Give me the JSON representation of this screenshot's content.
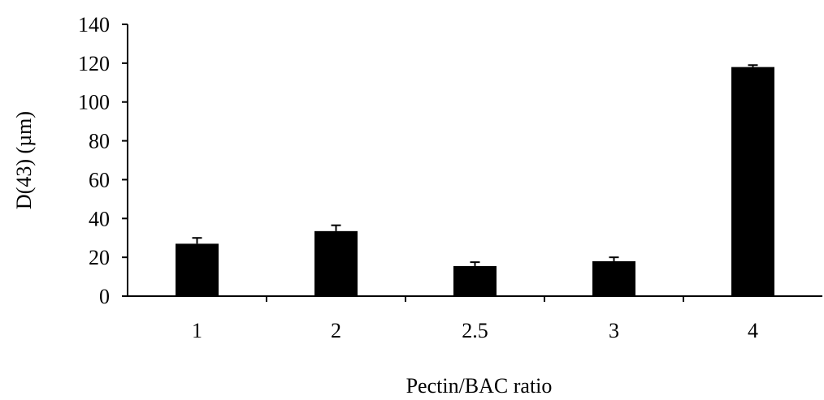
{
  "chart_data": {
    "type": "bar",
    "categories": [
      "1",
      "2",
      "2.5",
      "3",
      "4"
    ],
    "values": [
      27,
      33.5,
      15.5,
      18,
      118
    ],
    "errors": [
      3,
      3,
      2,
      2,
      1
    ],
    "title": "",
    "xlabel": "Pectin/BAC ratio",
    "ylabel": "D(43) (µm)",
    "ylim": [
      0,
      140
    ],
    "yticks": [
      "0",
      "20",
      "40",
      "60",
      "80",
      "100",
      "120",
      "140"
    ],
    "bar_color": "#000000",
    "grid": false
  }
}
